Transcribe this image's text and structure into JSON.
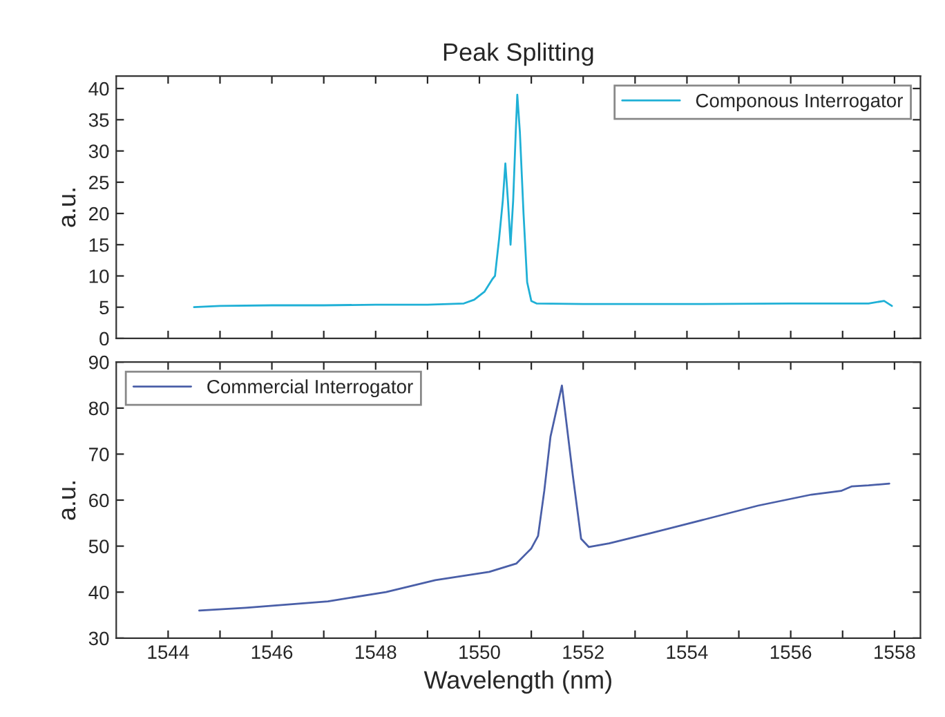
{
  "chart_data": [
    {
      "type": "line",
      "title": "Peak Splitting",
      "ylabel": "a.u.",
      "xlim": [
        1543,
        1558.5
      ],
      "ylim": [
        0,
        42
      ],
      "xticks": [
        {
          "value": 1544,
          "label": null
        },
        {
          "value": 1545,
          "label": null
        },
        {
          "value": 1546,
          "label": null
        },
        {
          "value": 1547,
          "label": null
        },
        {
          "value": 1548,
          "label": null
        },
        {
          "value": 1549,
          "label": null
        },
        {
          "value": 1550,
          "label": null
        },
        {
          "value": 1551,
          "label": null
        },
        {
          "value": 1552,
          "label": null
        },
        {
          "value": 1553,
          "label": null
        },
        {
          "value": 1554,
          "label": null
        },
        {
          "value": 1555,
          "label": null
        },
        {
          "value": 1556,
          "label": null
        },
        {
          "value": 1557,
          "label": null
        },
        {
          "value": 1558,
          "label": null
        }
      ],
      "yticks": [
        0,
        5,
        10,
        15,
        20,
        25,
        30,
        35,
        40
      ],
      "tick_labels": "y",
      "grid": false,
      "legend": "top right",
      "series": [
        {
          "name": "Componous Interrogator",
          "color": "#1fb0d6",
          "x": [
            1544.5,
            1545,
            1546,
            1547,
            1548,
            1549,
            1549.7,
            1549.9,
            1550.1,
            1550.25,
            1550.3,
            1550.38,
            1550.45,
            1550.5,
            1550.55,
            1550.6,
            1550.65,
            1550.7,
            1550.73,
            1550.78,
            1550.85,
            1550.92,
            1551.0,
            1551.1,
            1552,
            1554,
            1556,
            1557.5,
            1557.8,
            1557.95
          ],
          "values": [
            5.0,
            5.2,
            5.3,
            5.3,
            5.4,
            5.4,
            5.6,
            6.2,
            7.5,
            9.5,
            10,
            16,
            22,
            28,
            22,
            15,
            22,
            33,
            39,
            33,
            20,
            9,
            6,
            5.6,
            5.5,
            5.5,
            5.6,
            5.6,
            6.0,
            5.2
          ]
        }
      ]
    },
    {
      "type": "line",
      "xlabel": "Wavelength (nm)",
      "ylabel": "a.u.",
      "xlim": [
        1543,
        1558.5
      ],
      "ylim": [
        30,
        90
      ],
      "xticks": [
        1544,
        {
          "value": 1545,
          "label": null
        },
        1546,
        {
          "value": 1547,
          "label": null
        },
        1548,
        {
          "value": 1549,
          "label": null
        },
        1550,
        {
          "value": 1551,
          "label": null
        },
        1552,
        {
          "value": 1553,
          "label": null
        },
        1554,
        {
          "value": 1555,
          "label": null
        },
        1556,
        {
          "value": 1557,
          "label": null
        },
        1558
      ],
      "yticks": [
        30,
        40,
        50,
        60,
        70,
        80,
        90
      ],
      "grid": false,
      "legend": "top left",
      "series": [
        {
          "name": "Commercial Interrogator",
          "color": "#4a5fa8",
          "x": [
            1544.6,
            1545.5,
            1547.08,
            1548.2,
            1549.15,
            1550.19,
            1550.71,
            1551.0,
            1551.13,
            1551.25,
            1551.37,
            1551.59,
            1551.8,
            1551.96,
            1552.11,
            1552.5,
            1553.3,
            1554.34,
            1555.37,
            1556.4,
            1556.97,
            1557.18,
            1557.5,
            1557.9
          ],
          "values": [
            36.0,
            36.6,
            38.0,
            40.0,
            42.6,
            44.4,
            46.2,
            49.5,
            52.2,
            62,
            73.8,
            84.9,
            65.4,
            51.6,
            49.8,
            50.6,
            52.8,
            55.8,
            58.8,
            61.2,
            62.0,
            63.0,
            63.2,
            63.6
          ]
        }
      ]
    }
  ]
}
